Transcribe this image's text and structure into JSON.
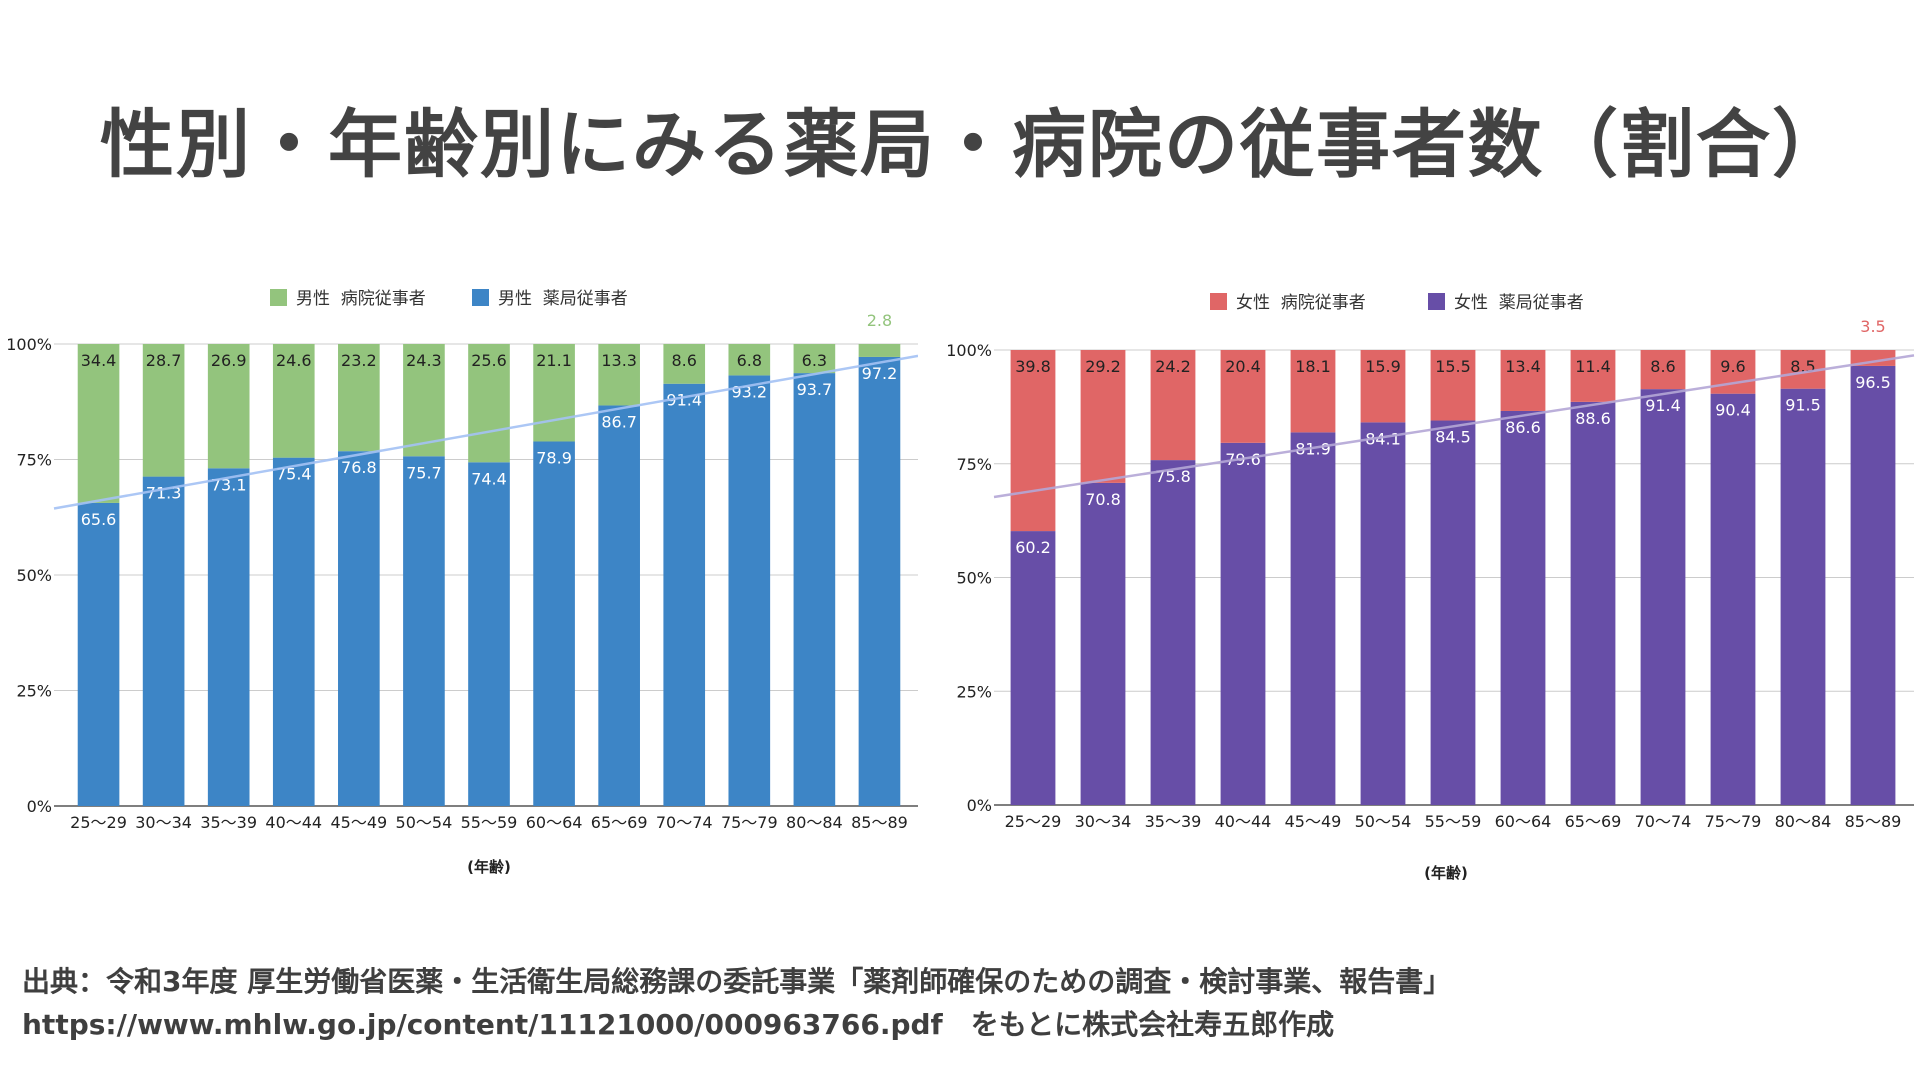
{
  "page": {
    "title": "性別・年齢別にみる薬局・病院の従事者数（割合）",
    "footer_line1": "出典：令和3年度 厚生労働省医薬・生活衛生局総務課の委託事業「薬剤師確保のための調査・検討事業、報告書」",
    "footer_line2": "https://www.mhlw.go.jp/content/11121000/000963766.pdf　をもとに株式会社寿五郎作成"
  },
  "chart_data": [
    {
      "type": "bar",
      "stacked": true,
      "xlabel": "(年齢)",
      "ylabel": "",
      "ylim": [
        0,
        100
      ],
      "yticks": [
        "0%",
        "25%",
        "50%",
        "75%",
        "100%"
      ],
      "legend_position": "top",
      "categories": [
        "25～29",
        "30～34",
        "35～39",
        "40～44",
        "45～49",
        "50～54",
        "55～59",
        "60～64",
        "65～69",
        "70～74",
        "75～79",
        "80～84",
        "85～89"
      ],
      "series": [
        {
          "name": "男性  薬局従事者",
          "color": "#3d85c6",
          "label_color": "#ffffff",
          "values": [
            65.6,
            71.3,
            73.1,
            75.4,
            76.8,
            75.7,
            74.4,
            78.9,
            86.7,
            91.4,
            93.2,
            93.7,
            97.2
          ]
        },
        {
          "name": "男性  病院従事者",
          "color": "#93c47d",
          "label_color": "#222222",
          "values": [
            34.4,
            28.7,
            26.9,
            24.6,
            23.2,
            24.3,
            25.6,
            21.1,
            13.3,
            8.6,
            6.8,
            6.3,
            2.8
          ]
        }
      ],
      "trendline": {
        "series": "男性  薬局従事者",
        "color": "#a4c2f4"
      }
    },
    {
      "type": "bar",
      "stacked": true,
      "xlabel": "(年齢)",
      "ylabel": "",
      "ylim": [
        0,
        100
      ],
      "yticks": [
        "0%",
        "25%",
        "50%",
        "75%",
        "100%"
      ],
      "legend_position": "top",
      "categories": [
        "25～29",
        "30～34",
        "35～39",
        "40～44",
        "45～49",
        "50～54",
        "55～59",
        "60～64",
        "65～69",
        "70～74",
        "75～79",
        "80～84",
        "85～89"
      ],
      "series": [
        {
          "name": "女性  薬局従事者",
          "color": "#674ea7",
          "label_color": "#ffffff",
          "values": [
            60.2,
            70.8,
            75.8,
            79.6,
            81.9,
            84.1,
            84.5,
            86.6,
            88.6,
            91.4,
            90.4,
            91.5,
            96.5
          ]
        },
        {
          "name": "女性  病院従事者",
          "color": "#e06666",
          "label_color": "#222222",
          "values": [
            39.8,
            29.2,
            24.2,
            20.4,
            18.1,
            15.9,
            15.5,
            13.4,
            11.4,
            8.6,
            9.6,
            8.5,
            3.5
          ]
        }
      ],
      "trendline": {
        "series": "女性  薬局従事者",
        "color": "#b4a7d6"
      }
    }
  ]
}
